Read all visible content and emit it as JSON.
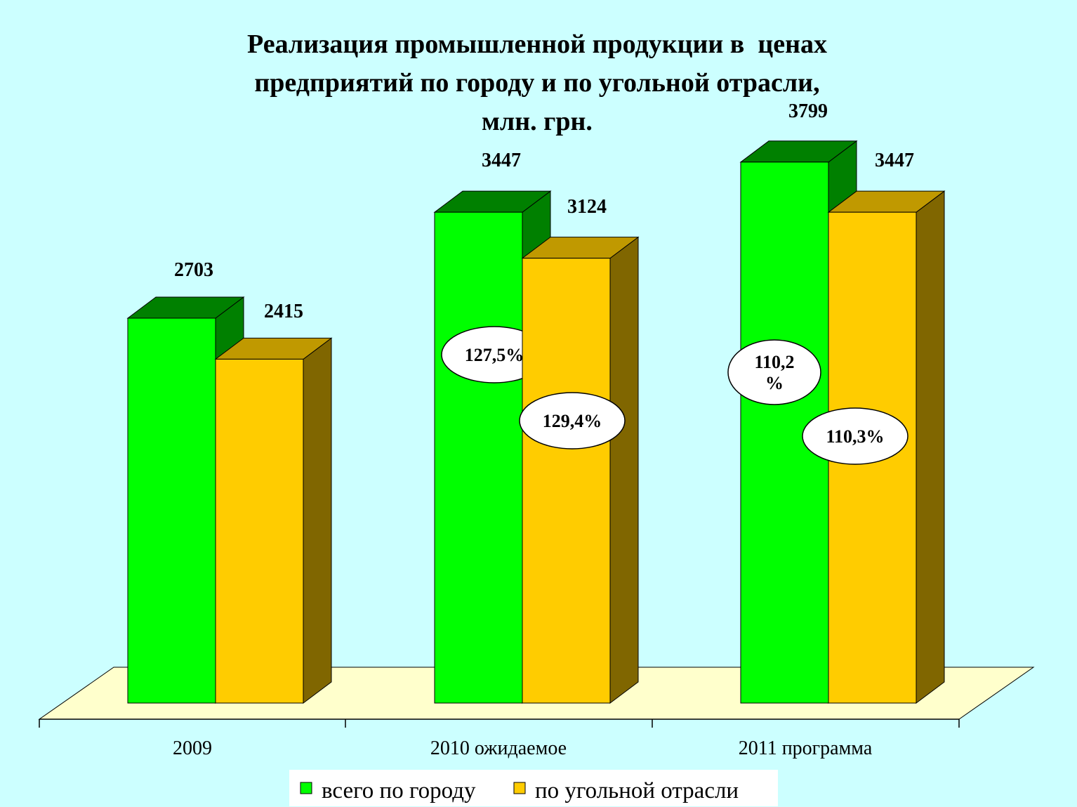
{
  "chart_data": {
    "type": "bar",
    "title_lines": [
      "Реализация промышленной продукции в  ценах",
      "предприятий по городу и по угольной отрасли,",
      "млн. грн."
    ],
    "categories": [
      "2009",
      "2010 ожидаемое",
      "2011 программа"
    ],
    "series": [
      {
        "name": "всего по городу",
        "values": [
          2703,
          3447,
          3799
        ],
        "growth_labels": [
          "",
          "127,5%",
          "110,2\n%"
        ],
        "color": "#00ff00",
        "side_color": "#008000"
      },
      {
        "name": "по угольной отрасли",
        "values": [
          2415,
          3124,
          3447
        ],
        "growth_labels": [
          "",
          "129,4%",
          "110,3%"
        ],
        "color": "#ffcc00",
        "side_color": "#806600",
        "top_color": "#c09900"
      }
    ],
    "data_labels": [
      [
        "2703",
        "3447",
        "3799"
      ],
      [
        "2415",
        "3124",
        "3447"
      ]
    ],
    "legend_position": "bottom-center",
    "background": "#ccffff",
    "floor_color": "#ffffcc",
    "grid": false
  }
}
